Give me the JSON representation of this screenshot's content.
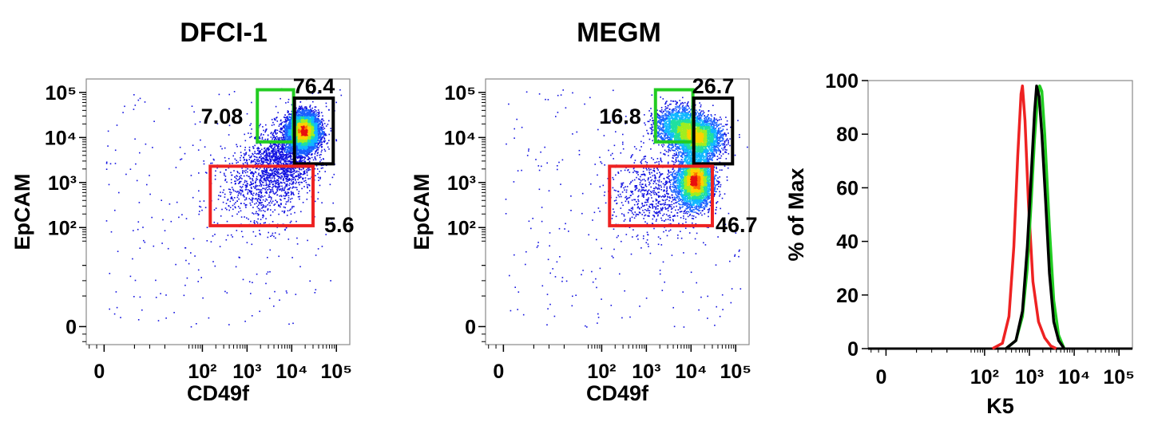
{
  "chart_data": [
    {
      "type": "scatter",
      "subtype": "flow-cytometry-density-plot",
      "title": "DFCI-1",
      "xlabel": "CD49f",
      "ylabel": "EpCAM",
      "scale": "biexponential (log)",
      "x_tick_labels": [
        "0",
        "10²",
        "10³",
        "10⁴",
        "10⁵"
      ],
      "y_tick_labels": [
        "0",
        "10²",
        "10³",
        "10⁴",
        "10⁵"
      ],
      "populations": [
        {
          "center": [
            18000,
            14000
          ],
          "spread": [
            0.17,
            0.2
          ],
          "share": 0.78
        },
        {
          "center": [
            6000,
            3500
          ],
          "spread": [
            0.35,
            0.35
          ],
          "share": 0.14
        },
        {
          "center": [
            2000,
            800
          ],
          "spread": [
            0.5,
            0.45
          ],
          "share": 0.08
        }
      ],
      "gates": [
        {
          "color": "#22cc22",
          "x": [
            1700,
            11000
          ],
          "y": [
            8000,
            115000
          ],
          "value": "7.08",
          "label_pos": "left"
        },
        {
          "color": "#000000",
          "x": [
            11500,
            85000
          ],
          "y": [
            2600,
            75000
          ],
          "value": "76.4",
          "label_pos": "top-right"
        },
        {
          "color": "#ee2222",
          "x": [
            150,
            30000
          ],
          "y": [
            110,
            2300
          ],
          "value": "5.6",
          "label_pos": "bottom-right"
        }
      ]
    },
    {
      "type": "scatter",
      "subtype": "flow-cytometry-density-plot",
      "title": "MEGM",
      "xlabel": "CD49f",
      "ylabel": "EpCAM",
      "scale": "biexponential (log)",
      "x_tick_labels": [
        "0",
        "10²",
        "10³",
        "10⁴",
        "10⁵"
      ],
      "y_tick_labels": [
        "0",
        "10²",
        "10³",
        "10⁴",
        "10⁵"
      ],
      "populations": [
        {
          "center": [
            12000,
            1100
          ],
          "spread": [
            0.2,
            0.28
          ],
          "share": 0.42
        },
        {
          "center": [
            15000,
            10000
          ],
          "spread": [
            0.25,
            0.22
          ],
          "share": 0.3
        },
        {
          "center": [
            5000,
            18000
          ],
          "spread": [
            0.25,
            0.22
          ],
          "share": 0.2
        },
        {
          "center": [
            1500,
            600
          ],
          "spread": [
            0.5,
            0.45
          ],
          "share": 0.08
        }
      ],
      "gates": [
        {
          "color": "#22cc22",
          "x": [
            1600,
            11000
          ],
          "y": [
            8000,
            115000
          ],
          "value": "16.8",
          "label_pos": "left"
        },
        {
          "color": "#000000",
          "x": [
            11500,
            85000
          ],
          "y": [
            2600,
            75000
          ],
          "value": "26.7",
          "label_pos": "top-right"
        },
        {
          "color": "#ee2222",
          "x": [
            150,
            30000
          ],
          "y": [
            110,
            2300
          ],
          "value": "46.7",
          "label_pos": "bottom-right"
        }
      ]
    },
    {
      "type": "line",
      "subtype": "histogram",
      "xlabel": "K5",
      "ylabel": "% of Max",
      "scale": "biexponential (log)",
      "x_tick_labels": [
        "0",
        "10²",
        "10³",
        "10⁴",
        "10⁵"
      ],
      "y_tick_labels": [
        "0",
        "20",
        "40",
        "60",
        "80",
        "100"
      ],
      "ylim": [
        0,
        100
      ],
      "series": [
        {
          "color": "#ee2222",
          "x": [
            150,
            250,
            350,
            450,
            550,
            650,
            700,
            800,
            950,
            1200,
            1600,
            2200,
            3000,
            4000
          ],
          "y": [
            0,
            2,
            12,
            38,
            72,
            95,
            98,
            85,
            55,
            25,
            10,
            4,
            1,
            0
          ]
        },
        {
          "color": "#22cc22",
          "x": [
            300,
            500,
            700,
            900,
            1100,
            1300,
            1500,
            1700,
            1900,
            2200,
            2800,
            3500,
            4500,
            6000
          ],
          "y": [
            0,
            3,
            12,
            30,
            55,
            78,
            92,
            98,
            96,
            80,
            45,
            18,
            5,
            0
          ]
        },
        {
          "color": "#000000",
          "x": [
            300,
            500,
            700,
            900,
            1100,
            1300,
            1450,
            1650,
            1900,
            2300,
            2800,
            3500,
            4500,
            6000
          ],
          "y": [
            0,
            3,
            14,
            38,
            65,
            88,
            98,
            94,
            80,
            55,
            28,
            10,
            3,
            0
          ]
        }
      ]
    }
  ]
}
